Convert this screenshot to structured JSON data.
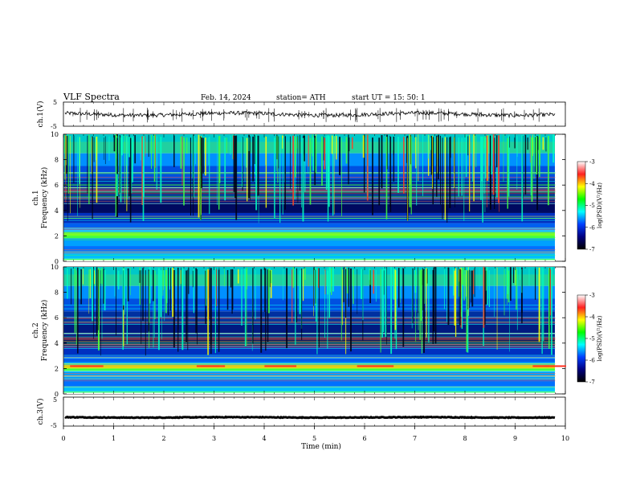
{
  "header": {
    "title": "VLF  Spectra",
    "date": "Feb. 14, 2024",
    "station": "station= ATH",
    "start_ut": "start  UT  =    15: 50: 1"
  },
  "chart_data": [
    {
      "type": "line",
      "panel": "ch1-waveform",
      "ylabel": "ch.1(V)",
      "y_ticks": [
        "5",
        "-5"
      ],
      "ylim": [
        -5,
        5
      ],
      "xlim": [
        0,
        10
      ],
      "baseline_value": 0
    },
    {
      "type": "heatmap",
      "panel": "ch1-spectrogram",
      "ylabel": "ch.1\nFrequency (kHz)",
      "ylabel_lines": [
        "ch.1",
        "Frequency  (kHz)"
      ],
      "y_ticks": [
        "0",
        "2",
        "4",
        "6",
        "8",
        "10"
      ],
      "ylim": [
        0,
        10
      ],
      "xlim": [
        0,
        9.8
      ],
      "colorbar": {
        "label": "log(PSD)(V²/Hz)",
        "range": [
          -7,
          -3
        ],
        "ticks": [
          "-3",
          "-4",
          "-5",
          "-6",
          "-7"
        ],
        "colormap": [
          "#ffffff",
          "#ff2020",
          "#ffff00",
          "#00ff00",
          "#00ffff",
          "#0040ff",
          "#000080",
          "#000000"
        ]
      }
    },
    {
      "type": "heatmap",
      "panel": "ch2-spectrogram",
      "ylabel": "ch.2\nFrequency (kHz)",
      "ylabel_lines": [
        "ch.2",
        "Frequency  (kHz)"
      ],
      "y_ticks": [
        "0",
        "2",
        "4",
        "6",
        "8",
        "10"
      ],
      "ylim": [
        0,
        10
      ],
      "xlim": [
        0,
        9.8
      ],
      "colorbar": {
        "label": "log(PSD)(V²/Hz)",
        "range": [
          -7,
          -3
        ],
        "ticks": [
          "-3",
          "-4",
          "-5",
          "-6",
          "-7"
        ],
        "colormap": [
          "#ffffff",
          "#ff2020",
          "#ffff00",
          "#00ff00",
          "#00ffff",
          "#0040ff",
          "#000080",
          "#000000"
        ]
      }
    },
    {
      "type": "line",
      "panel": "ch3-waveform",
      "ylabel": "ch.3(V)",
      "y_ticks": [
        "5",
        "-5"
      ],
      "ylim": [
        -5,
        5
      ],
      "xlim": [
        0,
        10
      ],
      "baseline_value": -2
    }
  ],
  "x_axis": {
    "label": "Time  (min)",
    "range": [
      0,
      10
    ],
    "ticks": [
      "0",
      "1",
      "2",
      "3",
      "4",
      "5",
      "6",
      "7",
      "8",
      "9",
      "10"
    ]
  }
}
